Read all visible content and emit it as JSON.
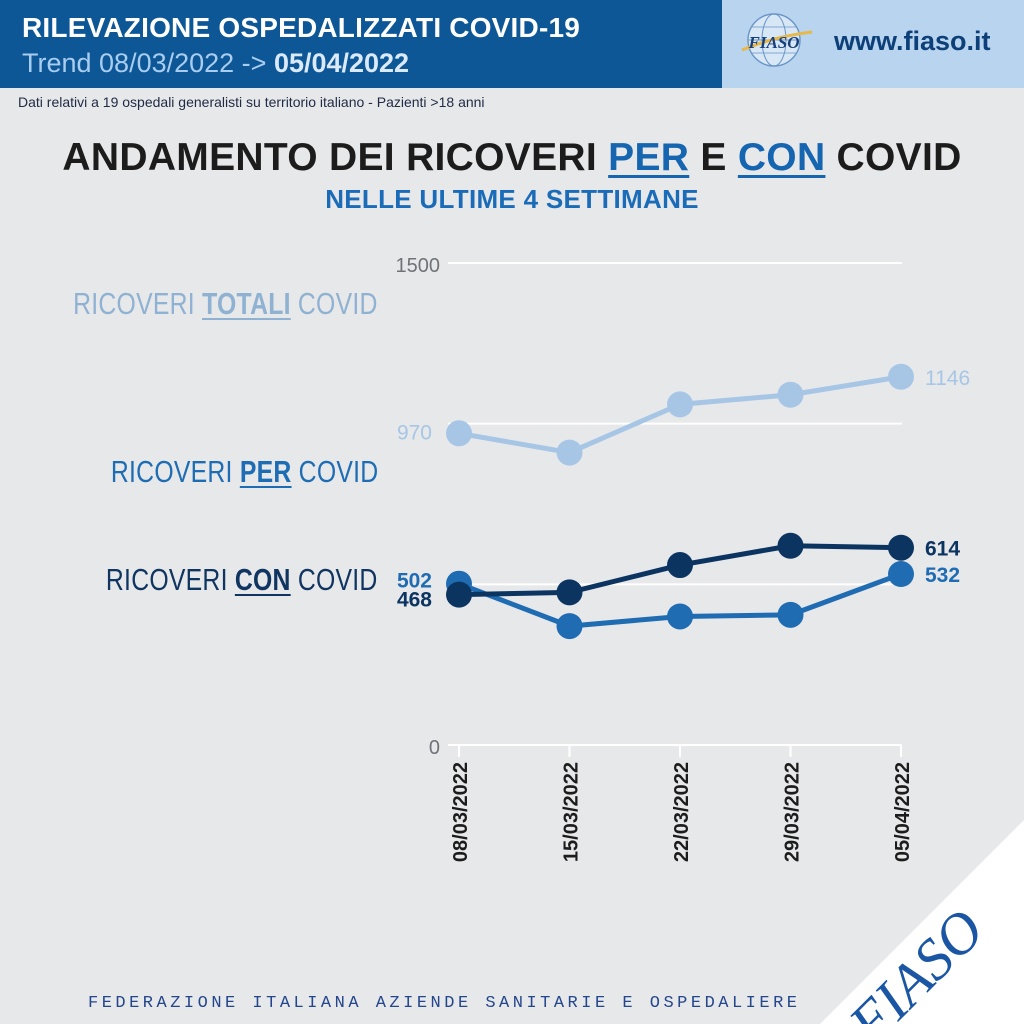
{
  "header": {
    "title": "RILEVAZIONE OSPEDALIZZATI COVID-19",
    "trend_prefix": "Trend 08/03/2022 -> ",
    "trend_end": "05/04/2022",
    "website": "www.fiaso.it",
    "logo_text": "FIASO",
    "colors": {
      "primary": "#0d5796",
      "secondary": "#b8d4ee"
    }
  },
  "subinfo": "Dati relativi a 19 ospedali generalisti su territorio italiano - Pazienti >18 anni",
  "title": {
    "part1": "ANDAMENTO DEI RICOVERI ",
    "per": "PER",
    "part2": " E ",
    "con": "CON",
    "part3": " COVID",
    "subtitle": "NELLE ULTIME 4 SETTIMANE"
  },
  "labels": {
    "totali_pre": "RICOVERI ",
    "totali_em": "TOTALI",
    "totali_post": " COVID",
    "per_pre": "RICOVERI ",
    "per_em": "PER",
    "per_post": " COVID",
    "con_pre": "RICOVERI ",
    "con_em": "CON",
    "con_post": " COVID"
  },
  "chart_data": {
    "type": "line",
    "x": [
      "08/03/2022",
      "15/03/2022",
      "22/03/2022",
      "29/03/2022",
      "05/04/2022"
    ],
    "ylim": [
      0,
      1500
    ],
    "yticks": [
      "1500",
      "0"
    ],
    "gridlines": [
      500,
      1000,
      1500
    ],
    "series": [
      {
        "name": "RICOVERI TOTALI COVID",
        "color": "#a7c6e6",
        "values": [
          970,
          910,
          1060,
          1090,
          1146
        ],
        "labels": [
          "970",
          "",
          "",
          "",
          "1146"
        ]
      },
      {
        "name": "RICOVERI PER COVID",
        "color": "#1f6cb3",
        "values": [
          502,
          370,
          400,
          405,
          532
        ],
        "labels": [
          "502",
          "",
          "",
          "",
          "532"
        ]
      },
      {
        "name": "RICOVERI CON COVID",
        "color": "#0c3461",
        "values": [
          468,
          475,
          560,
          620,
          614
        ],
        "labels": [
          "468",
          "",
          "",
          "",
          "614"
        ]
      }
    ]
  },
  "footer": {
    "text": "FEDERAZIONE ITALIANA AZIENDE SANITARIE E OSPEDALIERE",
    "corner_logo": "FIASO"
  }
}
